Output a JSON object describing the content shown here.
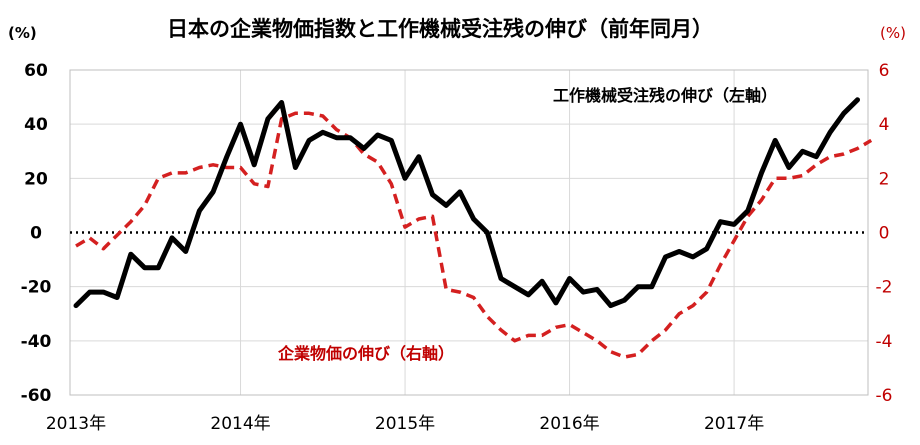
{
  "chart_data": {
    "type": "line",
    "title": "日本の企業物価指数と工作機械受注残の伸び（前年同月）",
    "yleft_unit": "(%)",
    "yright_unit": "(%)",
    "yleft_lim": [
      -60,
      60
    ],
    "yleft_ticks": [
      "60",
      "40",
      "20",
      "0",
      "-20",
      "-40",
      "-60"
    ],
    "yright_lim": [
      -6,
      6
    ],
    "yright_ticks": [
      "6",
      "4",
      "2",
      "0",
      "-2",
      "-4",
      "-6"
    ],
    "x_ticks": [
      "2013年",
      "2014年",
      "2015年",
      "2016年",
      "2017年"
    ],
    "grid": true,
    "zero_line": "dotted",
    "series": [
      {
        "name": "工作機械受注残の伸び（左軸）",
        "axis": "left",
        "color": "#000000",
        "style": "solid",
        "x": [
          "2013-01",
          "2013-02",
          "2013-03",
          "2013-04",
          "2013-05",
          "2013-06",
          "2013-07",
          "2013-08",
          "2013-09",
          "2013-10",
          "2013-11",
          "2013-12",
          "2014-01",
          "2014-02",
          "2014-03",
          "2014-04",
          "2014-05",
          "2014-06",
          "2014-07",
          "2014-08",
          "2014-09",
          "2014-10",
          "2014-11",
          "2014-12",
          "2015-01",
          "2015-02",
          "2015-03",
          "2015-04",
          "2015-05",
          "2015-06",
          "2015-07",
          "2015-08",
          "2015-09",
          "2015-10",
          "2015-11",
          "2015-12",
          "2016-01",
          "2016-02",
          "2016-03",
          "2016-04",
          "2016-05",
          "2016-06",
          "2016-07",
          "2016-08",
          "2016-09",
          "2016-10",
          "2016-11",
          "2016-12",
          "2017-01",
          "2017-02",
          "2017-03",
          "2017-04",
          "2017-05",
          "2017-06",
          "2017-07",
          "2017-08",
          "2017-09",
          "2017-10",
          "2017-11"
        ],
        "values": [
          -27,
          -22,
          -22,
          -24,
          -8,
          -13,
          -13,
          -2,
          -7,
          8,
          15,
          28,
          40,
          25,
          42,
          48,
          24,
          34,
          37,
          35,
          35,
          31,
          36,
          34,
          20,
          28,
          14,
          10,
          15,
          5,
          0,
          -17,
          -20,
          -23,
          -18,
          -26,
          -17,
          -22,
          -21,
          -27,
          -25,
          -20,
          -20,
          -9,
          -7,
          -9,
          -6,
          4,
          3,
          8,
          22,
          34,
          24,
          30,
          28,
          37,
          44,
          49,
          null
        ]
      },
      {
        "name": "企業物価の伸び（右軸）",
        "axis": "right",
        "color": "#d42020",
        "style": "dashed",
        "x": [
          "2013-01",
          "2013-02",
          "2013-03",
          "2013-04",
          "2013-05",
          "2013-06",
          "2013-07",
          "2013-08",
          "2013-09",
          "2013-10",
          "2013-11",
          "2013-12",
          "2014-01",
          "2014-02",
          "2014-03",
          "2014-04",
          "2014-05",
          "2014-06",
          "2014-07",
          "2014-08",
          "2014-09",
          "2014-10",
          "2014-11",
          "2014-12",
          "2015-01",
          "2015-02",
          "2015-03",
          "2015-04",
          "2015-05",
          "2015-06",
          "2015-07",
          "2015-08",
          "2015-09",
          "2015-10",
          "2015-11",
          "2015-12",
          "2016-01",
          "2016-02",
          "2016-03",
          "2016-04",
          "2016-05",
          "2016-06",
          "2016-07",
          "2016-08",
          "2016-09",
          "2016-10",
          "2016-11",
          "2016-12",
          "2017-01",
          "2017-02",
          "2017-03",
          "2017-04",
          "2017-05",
          "2017-06",
          "2017-07",
          "2017-08",
          "2017-09",
          "2017-10",
          "2017-11"
        ],
        "values": [
          -0.5,
          -0.2,
          -0.6,
          -0.1,
          0.4,
          1.0,
          2.0,
          2.2,
          2.2,
          2.4,
          2.5,
          2.4,
          2.4,
          1.8,
          1.7,
          4.2,
          4.4,
          4.4,
          4.3,
          3.8,
          3.5,
          2.9,
          2.6,
          1.8,
          0.2,
          0.5,
          0.6,
          -2.1,
          -2.2,
          -2.4,
          -3.1,
          -3.6,
          -4.0,
          -3.8,
          -3.8,
          -3.5,
          -3.4,
          -3.7,
          -4.0,
          -4.4,
          -4.6,
          -4.5,
          -4.0,
          -3.6,
          -3.0,
          -2.7,
          -2.2,
          -1.2,
          -0.3,
          0.6,
          1.2,
          2.0,
          2.0,
          2.1,
          2.5,
          2.8,
          2.9,
          3.1,
          3.4
        ]
      }
    ]
  }
}
